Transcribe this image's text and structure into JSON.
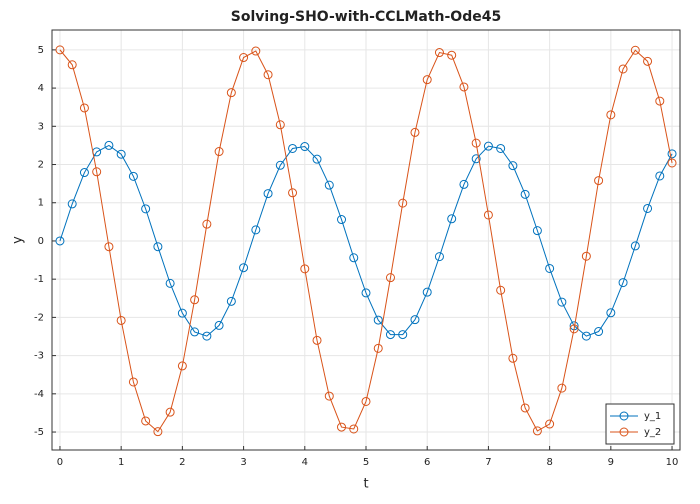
{
  "chart_data": {
    "type": "line",
    "title": "Solving-SHO-with-CCLMath-Ode45",
    "xlabel": "t",
    "ylabel": "y",
    "x": [
      0,
      0.2,
      0.4,
      0.6,
      0.8,
      1,
      1.2,
      1.4,
      1.6,
      1.8,
      2,
      2.2,
      2.4,
      2.6,
      2.8,
      3,
      3.2,
      3.4,
      3.6,
      3.8,
      4,
      4.2,
      4.4,
      4.6,
      4.8,
      5,
      5.2,
      5.4,
      5.6,
      5.8,
      6,
      6.2,
      6.4,
      6.6,
      6.8,
      7,
      7.2,
      7.4,
      7.6,
      7.8,
      8,
      8.2,
      8.4,
      8.6,
      8.8,
      9,
      9.2,
      9.4,
      9.6,
      9.8,
      10
    ],
    "series": [
      {
        "name": "y_1",
        "color": "#0072bd",
        "values": [
          0,
          0.97,
          1.79,
          2.33,
          2.5,
          2.27,
          1.69,
          0.84,
          -0.15,
          -1.11,
          -1.89,
          -2.38,
          -2.49,
          -2.21,
          -1.58,
          -0.7,
          0.29,
          1.24,
          1.98,
          2.42,
          2.47,
          2.14,
          1.46,
          0.56,
          -0.44,
          -1.36,
          -2.07,
          -2.45,
          -2.45,
          -2.06,
          -1.34,
          -0.41,
          0.58,
          1.48,
          2.15,
          2.48,
          2.42,
          1.97,
          1.22,
          0.27,
          -0.72,
          -1.6,
          -2.22,
          -2.49,
          -2.37,
          -1.88,
          -1.09,
          -0.13,
          0.85,
          1.7,
          2.28
        ]
      },
      {
        "name": "y_2",
        "color": "#d95319",
        "values": [
          5,
          4.61,
          3.48,
          1.81,
          -0.15,
          -2.08,
          -3.69,
          -4.71,
          -4.99,
          -4.48,
          -3.27,
          -1.54,
          0.44,
          2.34,
          3.88,
          4.8,
          4.97,
          4.35,
          3.04,
          1.26,
          -0.73,
          -2.6,
          -4.06,
          -4.87,
          -4.92,
          -4.2,
          -2.81,
          -0.96,
          0.99,
          2.84,
          4.22,
          4.93,
          4.86,
          4.03,
          2.56,
          0.68,
          -1.29,
          -3.07,
          -4.37,
          -4.97,
          -4.79,
          -3.85,
          -2.3,
          -0.4,
          1.58,
          3.3,
          4.5,
          4.99,
          4.7,
          3.66,
          2.04
        ]
      }
    ],
    "xlim": [
      -0.13,
      10.13
    ],
    "ylim": [
      -5.47,
      5.52
    ],
    "xticks": [
      0,
      1,
      2,
      3,
      4,
      5,
      6,
      7,
      8,
      9,
      10
    ],
    "yticks": [
      -5,
      -4,
      -3,
      -2,
      -1,
      0,
      1,
      2,
      3,
      4,
      5
    ],
    "grid": true,
    "legend": "lower right"
  }
}
